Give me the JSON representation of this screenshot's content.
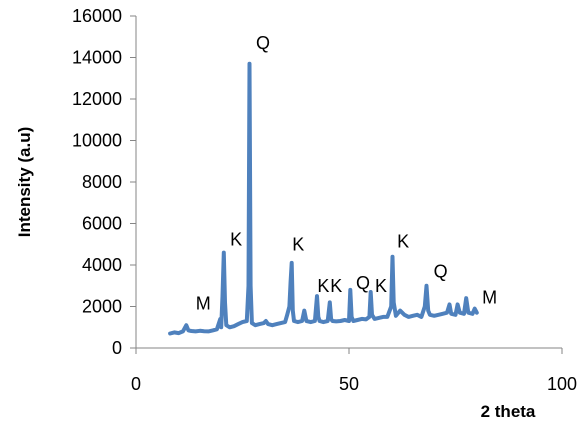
{
  "chart_data": {
    "type": "line",
    "title": "",
    "xlabel": "2 theta",
    "ylabel": "Intensity (a.u)",
    "xlim": [
      0,
      100
    ],
    "ylim": [
      0,
      16000
    ],
    "x_ticks": [
      0,
      50,
      100
    ],
    "y_ticks": [
      0,
      2000,
      4000,
      6000,
      8000,
      10000,
      12000,
      14000,
      16000
    ],
    "grid": false,
    "legend": "none",
    "series": [
      {
        "color": "#4f81bd",
        "x": [
          8,
          9,
          10,
          11,
          11.8,
          12.3,
          13,
          14,
          15,
          16,
          17,
          18,
          19,
          19.8,
          20,
          20.3,
          20.6,
          20.9,
          21.2,
          22,
          23,
          24,
          25,
          26,
          26.4,
          26.65,
          26.9,
          27.2,
          28,
          29,
          30,
          30.5,
          31,
          32,
          33,
          34,
          35,
          35.5,
          36,
          36.3,
          36.55,
          36.8,
          37.1,
          38,
          39,
          39.5,
          40,
          41,
          42,
          42.5,
          42.8,
          43.1,
          44,
          45,
          45.5,
          45.8,
          46.1,
          47,
          48,
          49,
          50,
          50.3,
          50.6,
          51,
          52,
          53,
          54,
          54.8,
          55.1,
          55.4,
          56,
          57,
          58,
          59,
          59.9,
          60.2,
          60.5,
          61,
          62,
          63,
          64,
          65,
          66,
          67,
          67.8,
          68.2,
          68.6,
          69,
          70,
          71,
          72,
          73,
          73.6,
          74,
          75,
          75.5,
          76,
          77,
          77.5,
          78,
          79,
          79.5,
          80
        ],
        "y": [
          700,
          750,
          720,
          800,
          1100,
          850,
          820,
          800,
          830,
          810,
          800,
          850,
          900,
          1400,
          1000,
          2500,
          4600,
          2200,
          1100,
          1000,
          1050,
          1150,
          1250,
          1300,
          3000,
          13700,
          3000,
          1200,
          1100,
          1150,
          1200,
          1300,
          1150,
          1100,
          1150,
          1200,
          1250,
          1600,
          2000,
          3200,
          4100,
          1800,
          1300,
          1250,
          1300,
          1800,
          1300,
          1250,
          1300,
          2500,
          1500,
          1300,
          1250,
          1300,
          2200,
          1400,
          1300,
          1280,
          1300,
          1350,
          1300,
          2800,
          1500,
          1300,
          1350,
          1400,
          1380,
          1500,
          2700,
          1600,
          1400,
          1450,
          1500,
          1500,
          2000,
          4400,
          2200,
          1550,
          1800,
          1600,
          1500,
          1550,
          1600,
          1500,
          2000,
          3000,
          1800,
          1600,
          1550,
          1600,
          1650,
          1700,
          2100,
          1650,
          1600,
          2100,
          1700,
          1650,
          2400,
          1700,
          1650,
          1900,
          1700
        ]
      }
    ],
    "annotations": [
      {
        "text": "M",
        "x": 15.8,
        "y": 1850
      },
      {
        "text": "K",
        "x": 23.5,
        "y": 4950
      },
      {
        "text": "Q",
        "x": 29.8,
        "y": 14400
      },
      {
        "text": "K",
        "x": 38.1,
        "y": 4700
      },
      {
        "text": "K",
        "x": 44.0,
        "y": 2700
      },
      {
        "text": "K",
        "x": 47.0,
        "y": 2700
      },
      {
        "text": "Q",
        "x": 53.3,
        "y": 2850
      },
      {
        "text": "K",
        "x": 57.5,
        "y": 2700
      },
      {
        "text": "K",
        "x": 62.7,
        "y": 4850
      },
      {
        "text": "Q",
        "x": 71.5,
        "y": 3400
      },
      {
        "text": "M",
        "x": 83.0,
        "y": 2150
      }
    ]
  }
}
